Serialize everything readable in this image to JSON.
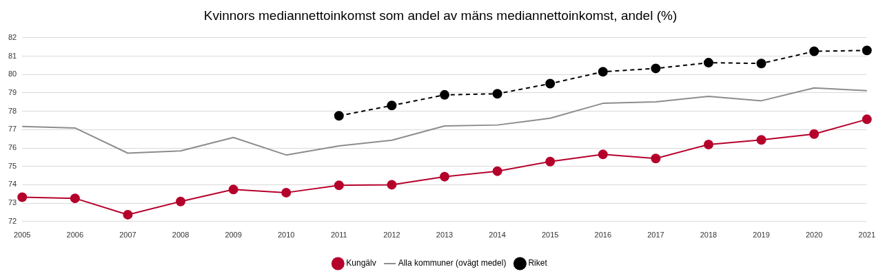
{
  "chart_data": {
    "type": "line",
    "title": "Kvinnors mediannettoinkomst som andel av mäns mediannettoinkomst, andel (%)",
    "categories": [
      "2005",
      "2006",
      "2007",
      "2008",
      "2009",
      "2010",
      "2011",
      "2012",
      "2013",
      "2014",
      "2015",
      "2016",
      "2017",
      "2018",
      "2019",
      "2020",
      "2021"
    ],
    "series": [
      {
        "name": "Kungälv",
        "color": "#b5002b",
        "marker": "circle",
        "line_style": "solid",
        "values": [
          73.32,
          73.26,
          72.37,
          73.09,
          73.74,
          73.57,
          73.97,
          74.0,
          74.44,
          74.74,
          75.26,
          75.65,
          75.43,
          76.19,
          76.44,
          76.76,
          77.56
        ]
      },
      {
        "name": "Alla kommuner (ovägt medel)",
        "color": "#8c8c8c",
        "marker": "none",
        "line_style": "solid",
        "values": [
          77.17,
          77.09,
          75.72,
          75.84,
          76.57,
          75.62,
          76.11,
          76.42,
          77.2,
          77.25,
          77.62,
          78.43,
          78.51,
          78.81,
          78.57,
          79.27,
          79.12
        ]
      },
      {
        "name": "Riket",
        "color": "#000000",
        "marker": "circle",
        "line_style": "dashed",
        "values": [
          null,
          null,
          null,
          null,
          null,
          null,
          77.75,
          78.31,
          78.89,
          78.95,
          79.5,
          80.15,
          80.33,
          80.64,
          80.6,
          81.26,
          81.31
        ]
      }
    ],
    "ylim": [
      72,
      82
    ],
    "yticks": [
      72,
      73,
      74,
      75,
      76,
      77,
      78,
      79,
      80,
      81,
      82
    ],
    "grid": "y",
    "legend": "bottom"
  }
}
